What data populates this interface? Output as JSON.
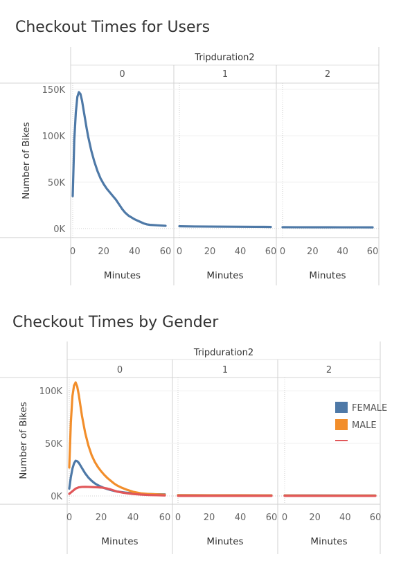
{
  "chart_data": [
    {
      "id": "users",
      "type": "line",
      "title": "Checkout Times for Users",
      "column_header_title": "Tripduration2",
      "panels": [
        "0",
        "1",
        "2"
      ],
      "xlabel": "Minutes",
      "ylabel": "Number of Bikes",
      "xlim": [
        0,
        60
      ],
      "ylim": [
        0,
        150000
      ],
      "x_ticks": [
        "0",
        "20",
        "40",
        "60"
      ],
      "y_ticks": [
        {
          "value": 0,
          "label": "0K"
        },
        {
          "value": 50000,
          "label": "50K"
        },
        {
          "value": 100000,
          "label": "100K"
        },
        {
          "value": 150000,
          "label": "150K"
        }
      ],
      "series": [
        {
          "color": "#4e79a7",
          "panels": {
            "0": {
              "x": [
                0,
                1,
                2,
                3,
                4,
                5,
                6,
                7,
                8,
                9,
                10,
                12,
                14,
                16,
                18,
                20,
                22,
                24,
                26,
                28,
                30,
                32,
                34,
                36,
                38,
                40,
                42,
                44,
                46,
                48,
                50,
                55,
                60
              ],
              "y": [
                35000,
                95000,
                125000,
                142000,
                147000,
                145000,
                138000,
                128000,
                118000,
                108000,
                99000,
                84000,
                72000,
                62000,
                54000,
                48000,
                43000,
                39000,
                35000,
                31000,
                26000,
                21000,
                17000,
                14000,
                12000,
                10000,
                8500,
                7000,
                5500,
                4500,
                4000,
                3500,
                3000
              ]
            },
            "1": {
              "x": [
                0,
                10,
                20,
                30,
                40,
                50,
                60
              ],
              "y": [
                2500,
                2300,
                2200,
                2100,
                2000,
                1900,
                1800
              ]
            },
            "2": {
              "x": [
                0,
                10,
                20,
                30,
                40,
                50,
                60
              ],
              "y": [
                1500,
                1450,
                1400,
                1400,
                1350,
                1350,
                1300
              ]
            }
          }
        }
      ]
    },
    {
      "id": "gender",
      "type": "line",
      "title": "Checkout Times by Gender",
      "column_header_title": "Tripduration2",
      "panels": [
        "0",
        "1",
        "2"
      ],
      "xlabel": "Minutes",
      "ylabel": "Number of Bikes",
      "xlim": [
        0,
        60
      ],
      "ylim": [
        0,
        110000
      ],
      "x_ticks": [
        "0",
        "20",
        "40",
        "60"
      ],
      "y_ticks": [
        {
          "value": 0,
          "label": "0K"
        },
        {
          "value": 50000,
          "label": "50K"
        },
        {
          "value": 100000,
          "label": "100K"
        }
      ],
      "legend_position": "right",
      "series": [
        {
          "name": "FEMALE",
          "color": "#4e79a7",
          "panels": {
            "0": {
              "x": [
                0,
                1,
                2,
                3,
                4,
                5,
                6,
                7,
                8,
                10,
                12,
                14,
                16,
                18,
                20,
                22,
                24,
                26,
                28,
                30,
                35,
                40,
                45,
                50,
                55,
                60
              ],
              "y": [
                7000,
                18000,
                26000,
                31000,
                33500,
                33000,
                31500,
                29000,
                26500,
                21500,
                17500,
                14500,
                12000,
                10200,
                8800,
                7500,
                6500,
                5600,
                4900,
                4200,
                3200,
                2500,
                2000,
                1800,
                1600,
                1500
              ]
            },
            "1": {
              "x": [
                0,
                20,
                40,
                60
              ],
              "y": [
                800,
                700,
                650,
                600
              ]
            },
            "2": {
              "x": [
                0,
                20,
                40,
                60
              ],
              "y": [
                500,
                480,
                460,
                450
              ]
            }
          }
        },
        {
          "name": "MALE",
          "color": "#f28e2b",
          "panels": {
            "0": {
              "x": [
                0,
                1,
                2,
                3,
                4,
                5,
                6,
                7,
                8,
                10,
                12,
                14,
                16,
                18,
                20,
                22,
                24,
                26,
                28,
                30,
                33,
                36,
                40,
                45,
                50,
                55,
                60
              ],
              "y": [
                27000,
                70000,
                95000,
                105000,
                108000,
                104000,
                96000,
                86000,
                76000,
                60000,
                48000,
                39000,
                32500,
                27500,
                23500,
                20000,
                17000,
                14500,
                12000,
                10000,
                7800,
                6000,
                4000,
                2500,
                1800,
                1500,
                1200
              ]
            },
            "1": {
              "x": [
                0,
                20,
                40,
                60
              ],
              "y": [
                700,
                600,
                550,
                500
              ]
            },
            "2": {
              "x": [
                0,
                20,
                40,
                60
              ],
              "y": [
                400,
                380,
                360,
                350
              ]
            }
          }
        },
        {
          "name": "",
          "color": "#e15759",
          "panels": {
            "0": {
              "x": [
                0,
                2,
                4,
                6,
                8,
                10,
                12,
                15,
                18,
                20,
                22,
                24,
                26,
                28,
                30,
                33,
                36,
                40,
                45,
                50,
                55,
                60
              ],
              "y": [
                2000,
                4500,
                7000,
                8200,
                8600,
                8700,
                8600,
                8400,
                8200,
                8000,
                7600,
                7000,
                6200,
                5200,
                4200,
                3300,
                2600,
                1900,
                1300,
                900,
                700,
                500
              ]
            },
            "1": {
              "x": [
                0,
                60
              ],
              "y": [
                100,
                80
              ]
            },
            "2": {
              "x": [
                0,
                60
              ],
              "y": [
                60,
                50
              ]
            }
          }
        }
      ]
    }
  ]
}
